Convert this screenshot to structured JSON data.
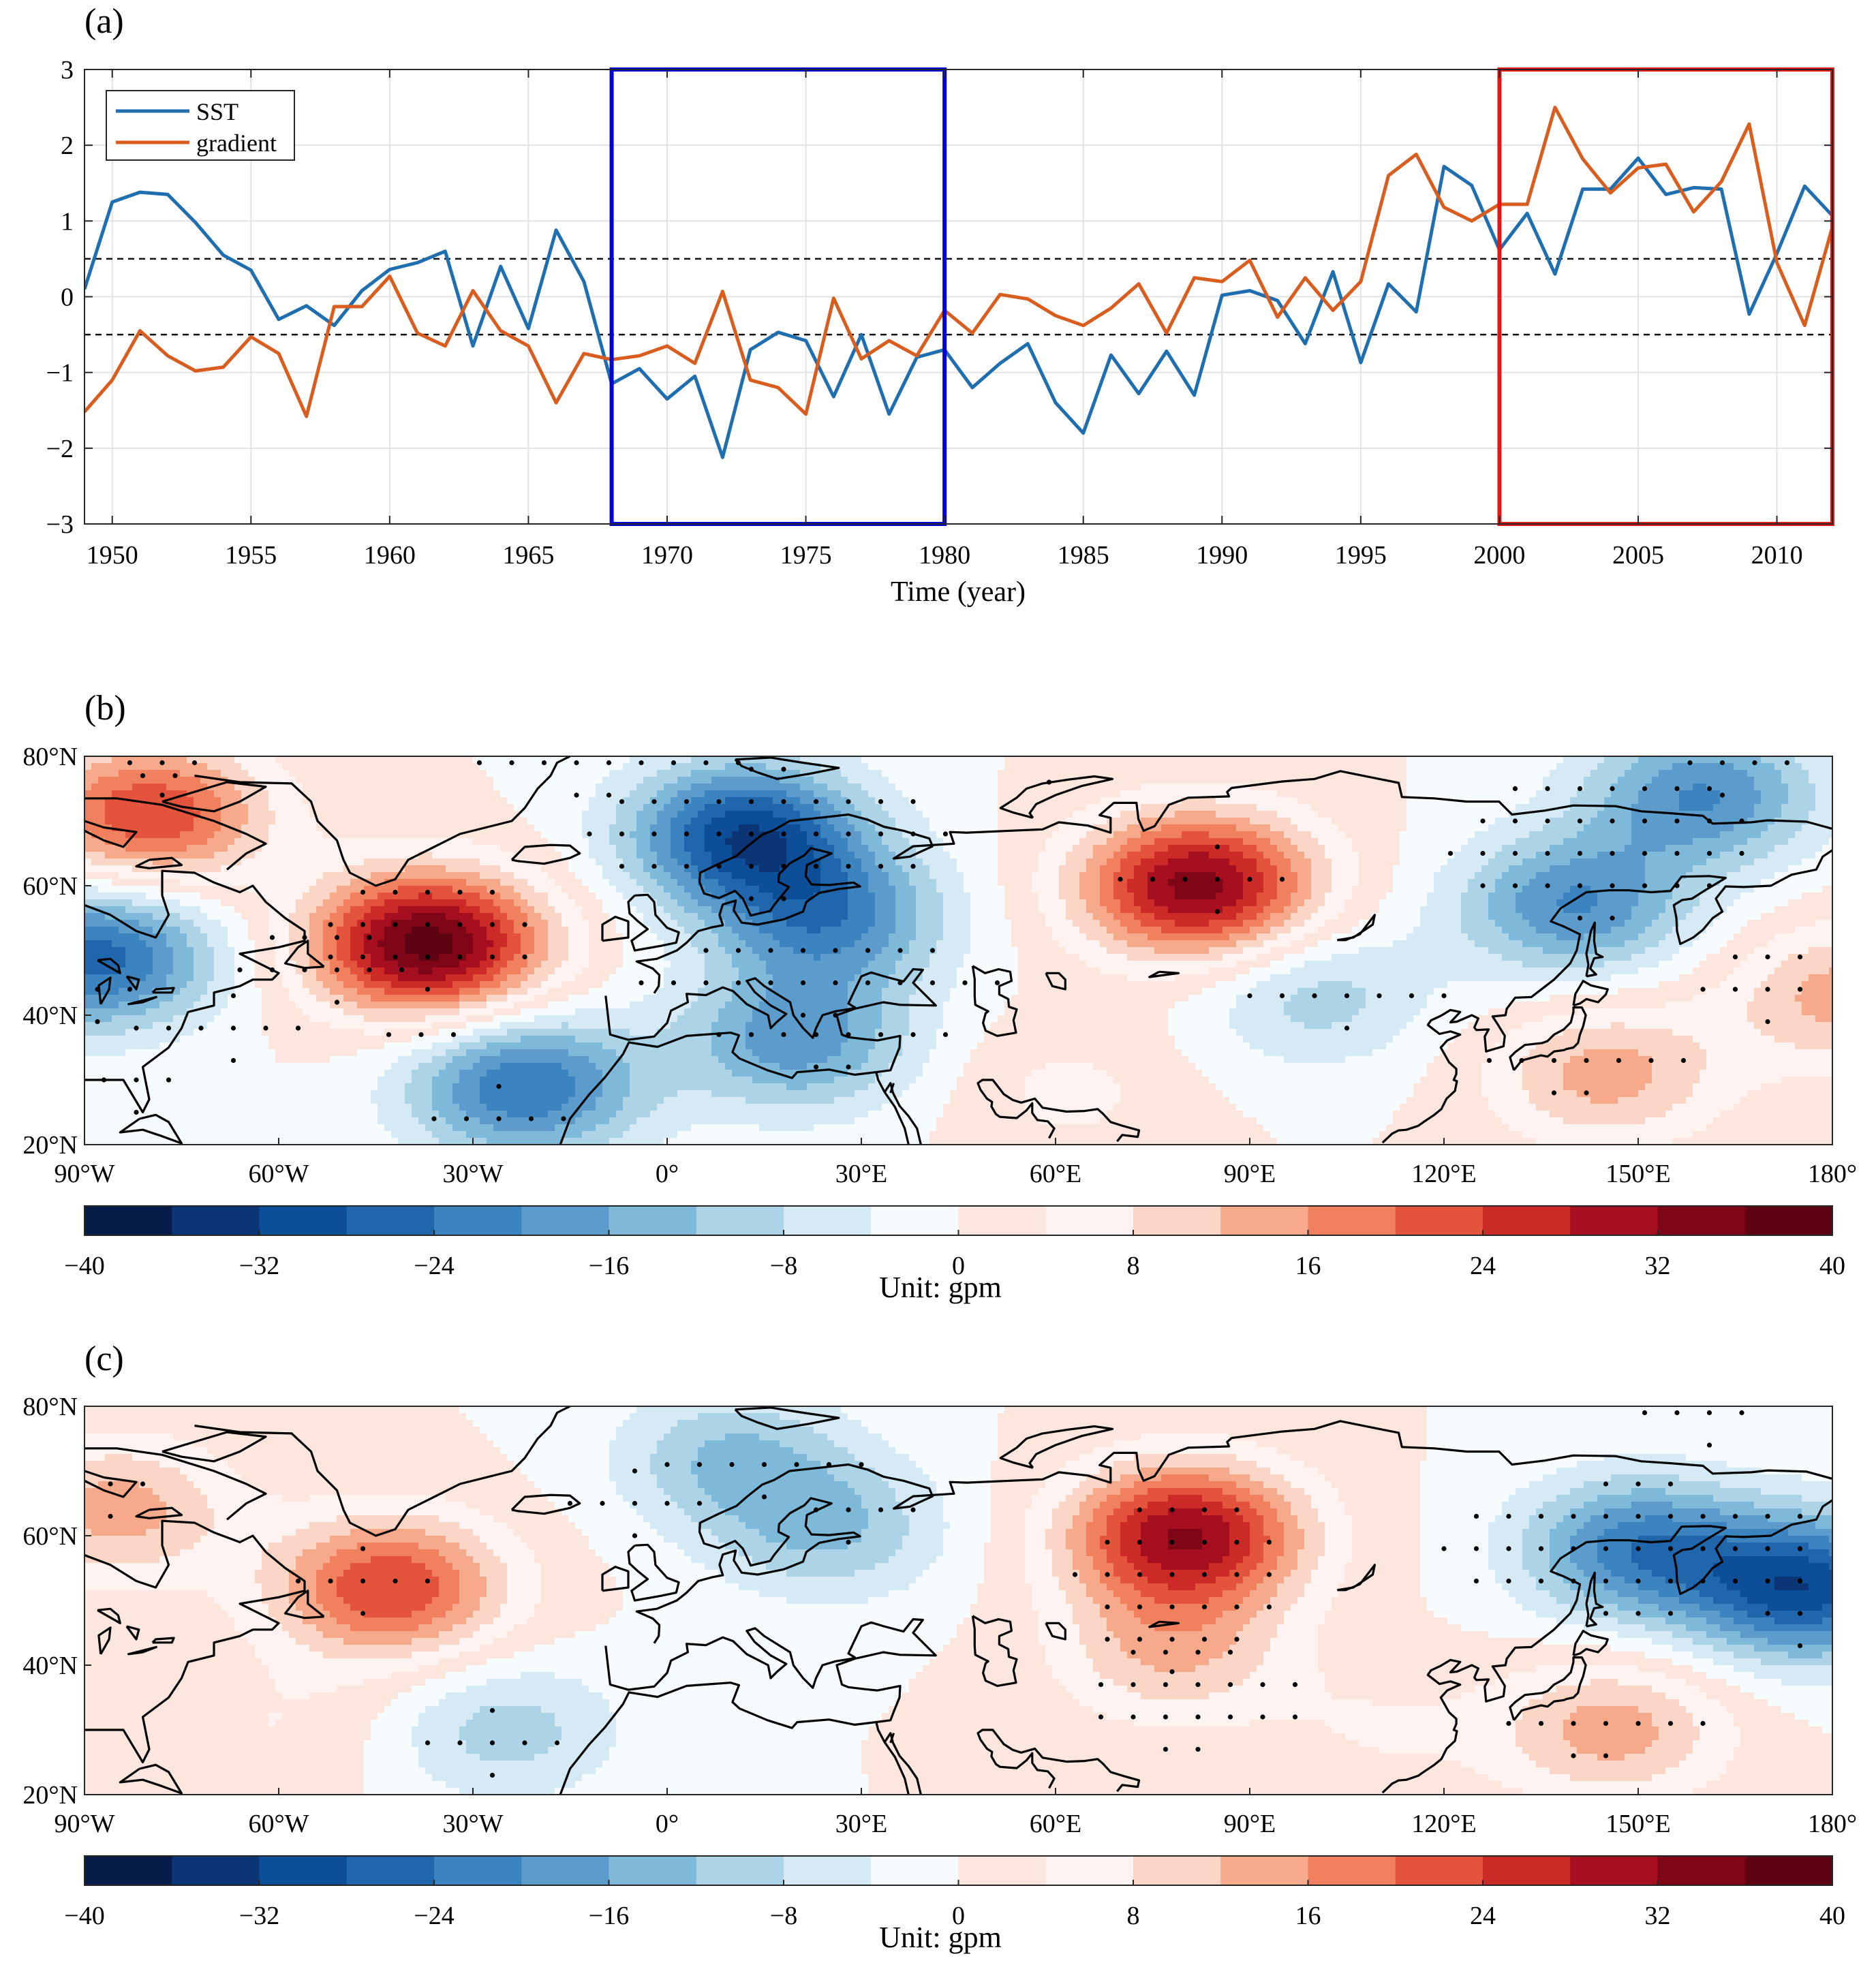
{
  "panel_labels": {
    "a": "(a)",
    "b": "(b)",
    "c": "(c)"
  },
  "chart_data": [
    {
      "type": "line",
      "panel": "(a)",
      "xlabel": "Time (year)",
      "ylabel": "",
      "xlim": [
        1949,
        2012
      ],
      "ylim": [
        -3,
        3
      ],
      "x_ticks": [
        "1950",
        "1955",
        "1960",
        "1965",
        "1970",
        "1975",
        "1980",
        "1985",
        "1990",
        "1995",
        "2000",
        "2005",
        "2010"
      ],
      "y_ticks": [
        "−3",
        "−2",
        "−1",
        "0",
        "1",
        "2",
        "3"
      ],
      "grid": true,
      "legend_position": "top-left",
      "reference_lines": [
        0.5,
        -0.5
      ],
      "highlight_boxes": [
        {
          "x_range": [
            1968,
            1980
          ],
          "color": "#0000d8"
        },
        {
          "x_range": [
            2000,
            2012
          ],
          "color": "#e01818"
        }
      ],
      "x": [
        1949,
        1950,
        1951,
        1952,
        1953,
        1954,
        1955,
        1956,
        1957,
        1958,
        1959,
        1960,
        1961,
        1962,
        1963,
        1964,
        1965,
        1966,
        1967,
        1968,
        1969,
        1970,
        1971,
        1972,
        1973,
        1974,
        1975,
        1976,
        1977,
        1978,
        1979,
        1980,
        1981,
        1982,
        1983,
        1984,
        1985,
        1986,
        1987,
        1988,
        1989,
        1990,
        1991,
        1992,
        1993,
        1994,
        1995,
        1996,
        1997,
        1998,
        1999,
        2000,
        2001,
        2002,
        2003,
        2004,
        2005,
        2006,
        2007,
        2008,
        2009,
        2010,
        2011,
        2012
      ],
      "series": [
        {
          "name": "SST",
          "color": "#1f6fb0",
          "values": [
            0.1,
            1.25,
            1.38,
            1.35,
            0.98,
            0.55,
            0.35,
            -0.3,
            -0.12,
            -0.38,
            0.08,
            0.36,
            0.45,
            0.6,
            -0.65,
            0.4,
            -0.42,
            0.88,
            0.2,
            -1.15,
            -0.95,
            -1.35,
            -1.05,
            -2.12,
            -0.7,
            -0.47,
            -0.58,
            -1.32,
            -0.5,
            -1.55,
            -0.8,
            -0.7,
            -1.2,
            -0.88,
            -0.62,
            -1.4,
            -1.8,
            -0.77,
            -1.28,
            -0.72,
            -1.3,
            0.02,
            0.08,
            -0.05,
            -0.62,
            0.33,
            -0.87,
            0.17,
            -0.2,
            1.72,
            1.47,
            0.62,
            1.1,
            0.3,
            1.42,
            1.42,
            1.83,
            1.35,
            1.44,
            1.42,
            -0.23,
            0.57,
            1.46,
            1.07
          ]
        },
        {
          "name": "gradient",
          "color": "#d95d1e",
          "values": [
            -1.52,
            -1.1,
            -0.45,
            -0.78,
            -0.98,
            -0.93,
            -0.53,
            -0.75,
            -1.58,
            -0.13,
            -0.13,
            0.27,
            -0.48,
            -0.65,
            0.08,
            -0.45,
            -0.65,
            -1.4,
            -0.75,
            -0.83,
            -0.78,
            -0.65,
            -0.88,
            0.07,
            -1.1,
            -1.2,
            -1.55,
            -0.02,
            -0.82,
            -0.58,
            -0.78,
            -0.18,
            -0.48,
            0.03,
            -0.03,
            -0.25,
            -0.38,
            -0.15,
            0.17,
            -0.48,
            0.25,
            0.2,
            0.48,
            -0.27,
            0.25,
            -0.18,
            0.2,
            1.6,
            1.88,
            1.18,
            1.0,
            1.22,
            1.22,
            2.5,
            1.82,
            1.37,
            1.7,
            1.75,
            1.12,
            1.52,
            2.28,
            0.45,
            -0.38,
            0.92
          ]
        }
      ]
    },
    {
      "type": "heatmap",
      "panel": "(b)",
      "lon_ticks": [
        "90°W",
        "60°W",
        "30°W",
        "0°",
        "30°E",
        "60°E",
        "90°E",
        "120°E",
        "150°E",
        "180°"
      ],
      "lat_ticks": [
        "80°N",
        "60°N",
        "40°N",
        "20°N"
      ],
      "lon_range": [
        -90,
        180
      ],
      "lat_range": [
        20,
        80
      ],
      "colorbar_ticks": [
        "−40",
        "−32",
        "−24",
        "−16",
        "−8",
        "0",
        "8",
        "16",
        "24",
        "32",
        "40"
      ],
      "colorbar_range": [
        -40,
        40
      ],
      "unit_label": "Unit:  gpm",
      "anomaly_centers": [
        {
          "lon": -37,
          "lat": 51,
          "value": 38
        },
        {
          "lon": -80,
          "lat": 71,
          "value": 24
        },
        {
          "lon": -88,
          "lat": 49,
          "value": -26
        },
        {
          "lon": 12,
          "lat": 68,
          "value": -30
        },
        {
          "lon": 25,
          "lat": 55,
          "value": -20
        },
        {
          "lon": 20,
          "lat": 36,
          "value": -18
        },
        {
          "lon": -22,
          "lat": 29,
          "value": -24
        },
        {
          "lon": 82,
          "lat": 60,
          "value": 34
        },
        {
          "lon": 160,
          "lat": 74,
          "value": -20
        },
        {
          "lon": 140,
          "lat": 57,
          "value": -20
        },
        {
          "lon": 100,
          "lat": 43,
          "value": -10
        },
        {
          "lon": 145,
          "lat": 31,
          "value": 14
        },
        {
          "lon": 182,
          "lat": 43,
          "value": 14
        },
        {
          "lon": 62,
          "lat": 28,
          "value": 5
        }
      ]
    },
    {
      "type": "heatmap",
      "panel": "(c)",
      "lon_ticks": [
        "90°W",
        "60°W",
        "30°W",
        "0°",
        "30°E",
        "60°E",
        "90°E",
        "120°E",
        "150°E",
        "180°"
      ],
      "lat_ticks": [
        "80°N",
        "60°N",
        "40°N",
        "20°N"
      ],
      "lon_range": [
        -90,
        180
      ],
      "lat_range": [
        20,
        80
      ],
      "colorbar_ticks": [
        "−40",
        "−32",
        "−24",
        "−16",
        "−8",
        "0",
        "8",
        "16",
        "24",
        "32",
        "40"
      ],
      "colorbar_range": [
        -40,
        40
      ],
      "unit_label": "Unit:  gpm",
      "anomaly_centers": [
        {
          "lon": -43,
          "lat": 52,
          "value": 24
        },
        {
          "lon": -85,
          "lat": 64,
          "value": 14
        },
        {
          "lon": 10,
          "lat": 72,
          "value": -12
        },
        {
          "lon": 25,
          "lat": 61,
          "value": -12
        },
        {
          "lon": -25,
          "lat": 30,
          "value": -10
        },
        {
          "lon": 80,
          "lat": 60,
          "value": 32
        },
        {
          "lon": 78,
          "lat": 42,
          "value": 12
        },
        {
          "lon": 150,
          "lat": 58,
          "value": -22
        },
        {
          "lon": 176,
          "lat": 52,
          "value": -30
        },
        {
          "lon": 146,
          "lat": 30,
          "value": 14
        },
        {
          "lon": -60,
          "lat": 30,
          "value": 4
        },
        {
          "lon": 110,
          "lat": 30,
          "value": 4
        }
      ]
    }
  ]
}
